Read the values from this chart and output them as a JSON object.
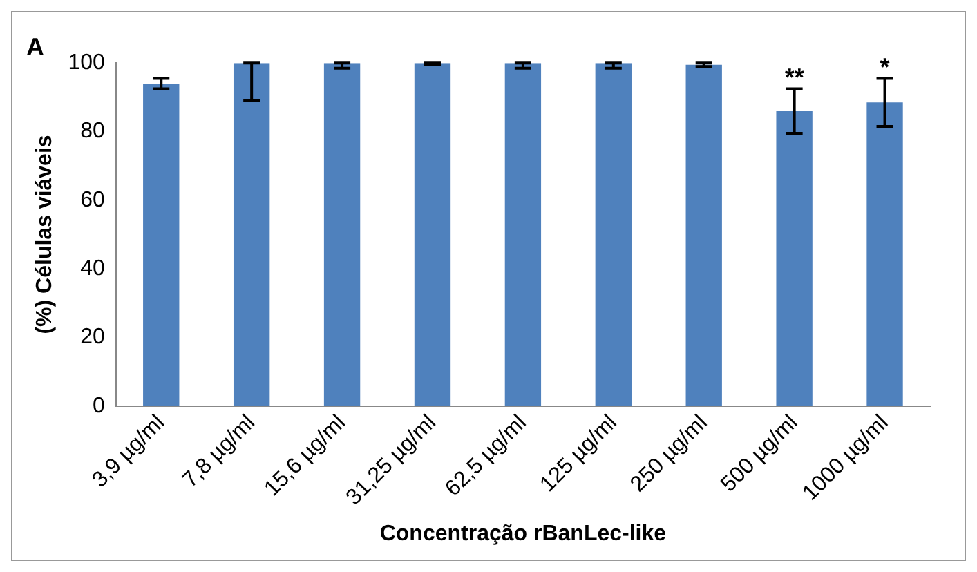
{
  "chart_data": {
    "type": "bar",
    "title": "A",
    "xlabel": "Concentração rBanLec-like",
    "ylabel": "(%) Células viáveis",
    "categories": [
      "3,9 µg/ml",
      "7,8 µg/ml",
      "15,6 µg/ml",
      "31,25 µg/ml",
      "62,5 µg/ml",
      "125 µg/ml",
      "250 µg/ml",
      "500 µg/ml",
      "1000 µg/ml"
    ],
    "values": [
      94,
      100,
      100,
      100,
      100,
      100,
      99.5,
      86,
      88.5
    ],
    "errors": [
      [
        92.5,
        95.5
      ],
      [
        89,
        100
      ],
      [
        98.5,
        100
      ],
      [
        99.5,
        100
      ],
      [
        98.5,
        100
      ],
      [
        98.5,
        100
      ],
      [
        99,
        100
      ],
      [
        79.5,
        92.5
      ],
      [
        81.5,
        95.5
      ]
    ],
    "color": "#4f81bd",
    "ylim": [
      0,
      100
    ],
    "yticks": [
      0,
      20,
      40,
      60,
      80,
      100
    ],
    "grid": false,
    "legend": false,
    "annotations": [
      {
        "text": "**",
        "x": "500 µg/ml",
        "y": 92.5
      },
      {
        "text": "*",
        "x": "1000 µg/ml",
        "y": 95.5
      }
    ]
  }
}
